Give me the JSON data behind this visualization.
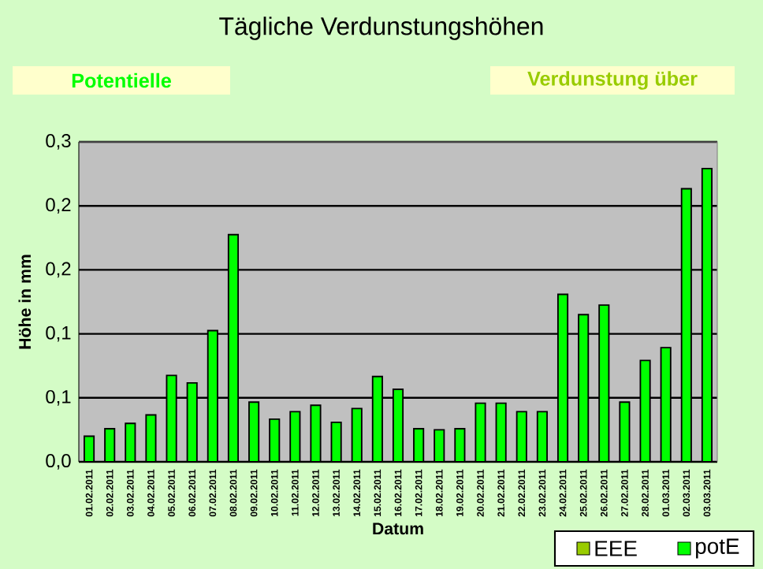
{
  "chart_data": {
    "type": "bar",
    "title": "Tägliche Verdunstungshöhen",
    "annotations": [
      "Potentielle",
      "Verdunstung über"
    ],
    "xlabel": "Datum",
    "ylabel": "Höhe in mm",
    "categories": [
      "01.02.2011",
      "02.02.2011",
      "03.02.2011",
      "04.02.2011",
      "05.02.2011",
      "06.02.2011",
      "07.02.2011",
      "08.02.2011",
      "09.02.2011",
      "10.02.2011",
      "11.02.2011",
      "12.02.2011",
      "13.02.2011",
      "14.02.2011",
      "15.02.2011",
      "16.02.2011",
      "17.02.2011",
      "18.02.2011",
      "19.02.2011",
      "20.02.2011",
      "21.02.2011",
      "22.02.2011",
      "23.02.2011",
      "24.02.2011",
      "25.02.2011",
      "26.02.2011",
      "27.02.2011",
      "28.02.2011",
      "01.03.2011",
      "02.03.2011",
      "03.03.2011"
    ],
    "series": [
      {
        "name": "EEE",
        "color": "#99cc00",
        "values": [
          null,
          null,
          null,
          null,
          null,
          null,
          null,
          null,
          null,
          null,
          null,
          null,
          null,
          null,
          null,
          null,
          null,
          null,
          null,
          null,
          null,
          null,
          null,
          null,
          null,
          null,
          null,
          null,
          null,
          null,
          null
        ]
      },
      {
        "name": "potE",
        "color": "#00ff00",
        "values": [
          0.024,
          0.031,
          0.036,
          0.044,
          0.081,
          0.074,
          0.123,
          0.213,
          0.056,
          0.04,
          0.047,
          0.053,
          0.037,
          0.05,
          0.08,
          0.068,
          0.031,
          0.03,
          0.031,
          0.055,
          0.055,
          0.047,
          0.047,
          0.157,
          0.138,
          0.147,
          0.056,
          0.095,
          0.107,
          0.256,
          0.275
        ]
      }
    ],
    "ylim": [
      0,
      0.3
    ],
    "yticks": [
      {
        "value": 0,
        "label": "0,0"
      },
      {
        "value": 0.06,
        "label": "0,1"
      },
      {
        "value": 0.12,
        "label": "0,1"
      },
      {
        "value": 0.18,
        "label": "0,2"
      },
      {
        "value": 0.24,
        "label": "0,2"
      },
      {
        "value": 0.3,
        "label": "0,3"
      }
    ],
    "grid": "y",
    "legend": "bottom right"
  }
}
